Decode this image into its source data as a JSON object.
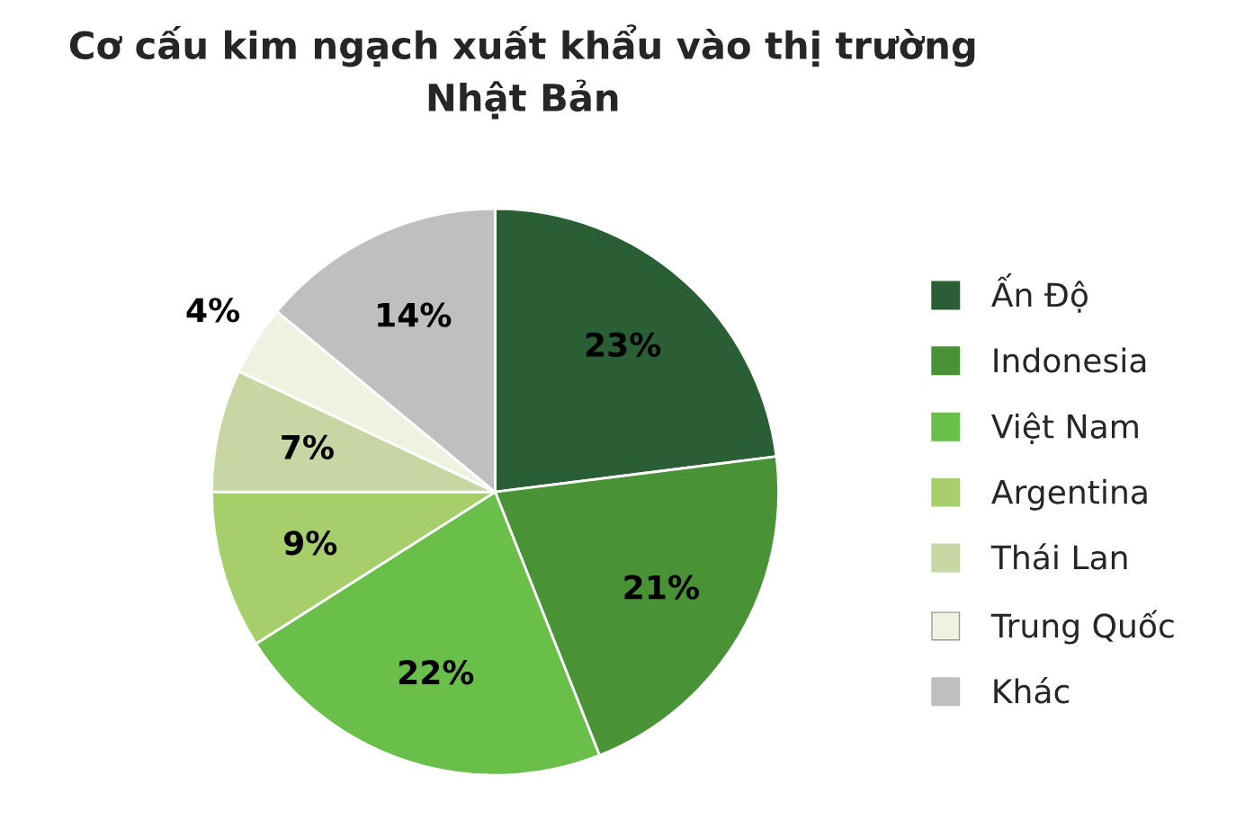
{
  "chart_data": {
    "type": "pie",
    "title": "Cơ cấu kim ngạch xuất khẩu vào thị trường\nNhật Bản",
    "categories": [
      "Ấn Độ",
      "Indonesia",
      "Việt Nam",
      "Argentina",
      "Thái Lan",
      "Trung Quốc",
      "Khác"
    ],
    "values": [
      23,
      21,
      22,
      9,
      7,
      4,
      14
    ],
    "colors": [
      "#2a5e34",
      "#4a9236",
      "#6abf4b",
      "#a6cf6b",
      "#c7d6a3",
      "#eef2e0",
      "#bfbfbf"
    ],
    "value_labels": [
      "23%",
      "21%",
      "22%",
      "9%",
      "7%",
      "4%",
      "14%"
    ],
    "legend": "right"
  }
}
